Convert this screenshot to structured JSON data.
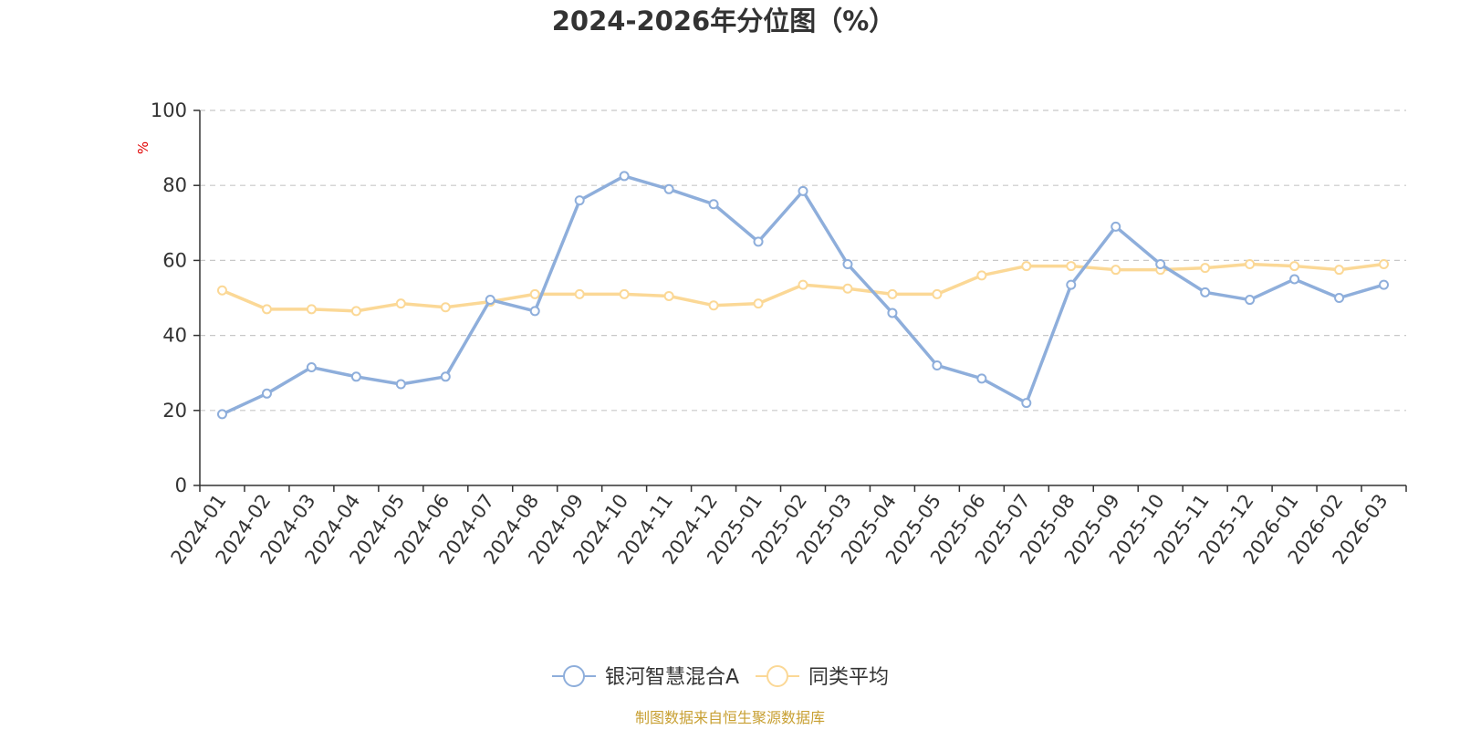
{
  "chart_data": {
    "type": "line",
    "title": "2024-2026年分位图（%）",
    "ylabel": "%",
    "ylim": [
      0,
      100
    ],
    "yticks": [
      0,
      20,
      40,
      60,
      80,
      100
    ],
    "grid": true,
    "legend_position": "bottom",
    "categories": [
      "2024-01",
      "2024-02",
      "2024-03",
      "2024-04",
      "2024-05",
      "2024-06",
      "2024-07",
      "2024-08",
      "2024-09",
      "2024-10",
      "2024-11",
      "2024-12",
      "2025-01",
      "2025-02",
      "2025-03",
      "2025-04",
      "2025-05",
      "2025-06",
      "2025-07",
      "2025-08",
      "2025-09",
      "2025-10",
      "2025-11",
      "2025-12",
      "2026-01",
      "2026-02",
      "2026-03"
    ],
    "series": [
      {
        "name": "银河智慧混合A",
        "color": "#8eaedb",
        "values": [
          19,
          24.5,
          31.5,
          29,
          27,
          29,
          49.5,
          46.5,
          76,
          82.5,
          79,
          75,
          65,
          78.5,
          59,
          46,
          32,
          28.5,
          22,
          53.5,
          69,
          59,
          51.5,
          49.5,
          55,
          50,
          53.5
        ]
      },
      {
        "name": "同类平均",
        "color": "#fbd896",
        "values": [
          52,
          47,
          47,
          46.5,
          48.5,
          47.5,
          49,
          51,
          51,
          51,
          50.5,
          48,
          48.5,
          53.5,
          52.5,
          51,
          51,
          56,
          58.5,
          58.5,
          57.5,
          57.5,
          58,
          59,
          58.5,
          57.5,
          59
        ]
      }
    ]
  },
  "footer": "制图数据来自恒生聚源数据库"
}
